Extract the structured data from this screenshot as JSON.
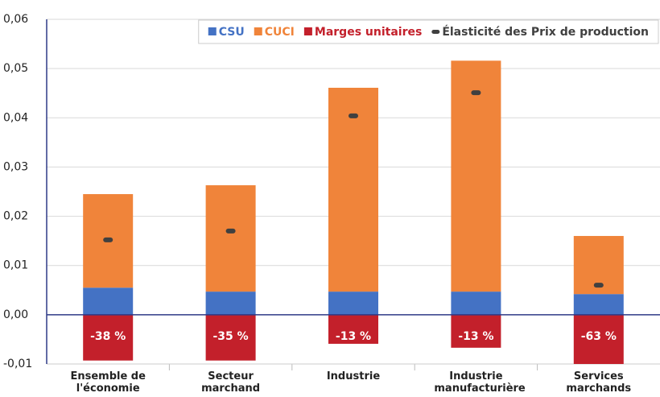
{
  "chart_data": {
    "type": "bar",
    "stacked": true,
    "categories": [
      "Ensemble de l'économie",
      "Secteur marchand",
      "Industrie",
      "Industrie manufacturière",
      "Services marchands"
    ],
    "series": [
      {
        "name": "CSU",
        "color": "#4472c4",
        "values": [
          0.0055,
          0.0047,
          0.0047,
          0.0047,
          0.0042
        ]
      },
      {
        "name": "CUCI",
        "color": "#f0843a",
        "values": [
          0.019,
          0.0216,
          0.0414,
          0.0469,
          0.0118
        ]
      },
      {
        "name": "Marges unitaires",
        "color": "#c3202b",
        "values": [
          -0.0093,
          -0.0093,
          -0.0059,
          -0.0067,
          -0.01
        ],
        "annotations": [
          "-38 %",
          "-35 %",
          "-13 %",
          "-13 %",
          "-63 %"
        ]
      },
      {
        "name": "Élasticité des Prix de production",
        "color": "#404040",
        "type": "marker",
        "values": [
          0.0152,
          0.017,
          0.0404,
          0.0451,
          0.006
        ]
      }
    ],
    "ylim": [
      -0.01,
      0.06
    ],
    "yticks": [
      {
        "value": -0.01,
        "label": "-0,01"
      },
      {
        "value": 0,
        "label": "0,00"
      },
      {
        "value": 0.01,
        "label": "0,01"
      },
      {
        "value": 0.02,
        "label": "0,02"
      },
      {
        "value": 0.03,
        "label": "0,03"
      },
      {
        "value": 0.04,
        "label": "0,04"
      },
      {
        "value": 0.05,
        "label": "0,05"
      },
      {
        "value": 0.06,
        "label": "0,06"
      }
    ],
    "grid": true,
    "legend": "top-right"
  }
}
